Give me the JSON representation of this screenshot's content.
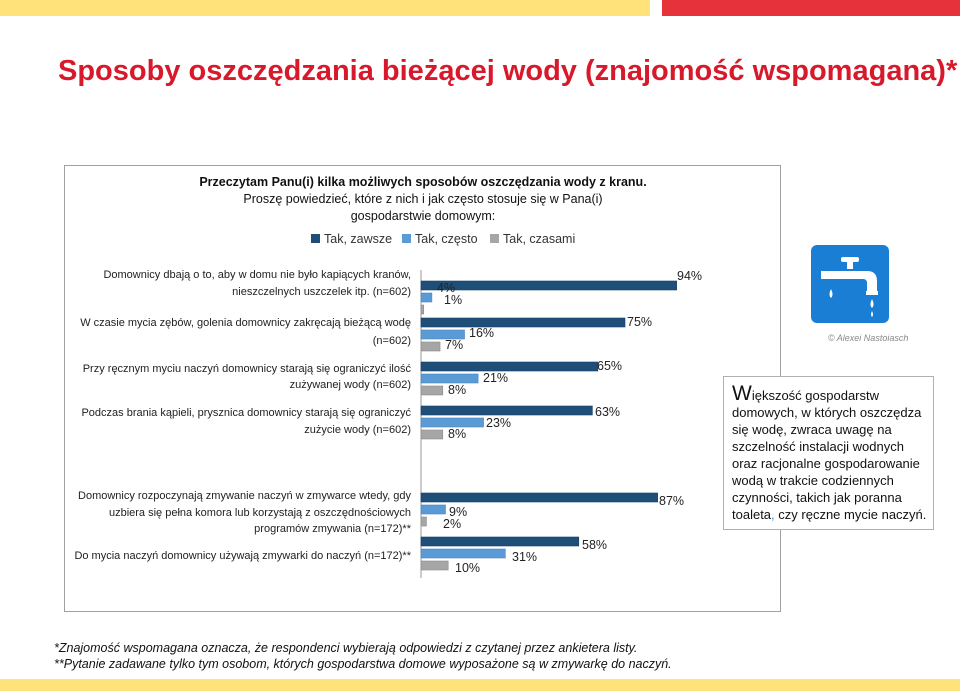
{
  "title": "Sposoby oszczędzania bieżącej wody  (znajomość wspomagana)*",
  "chart_data": {
    "type": "bar",
    "orientation": "horizontal",
    "question": [
      "Przeczytam Panu(i) kilka możliwych sposobów oszczędzania wody z kranu.",
      "Proszę powiedzieć, które z nich i jak często stosuje się w Pana(i)",
      "gospodarstwie domowym:"
    ],
    "legend_position": "top",
    "categories": [
      [
        "Domownicy dbają o to, aby w domu nie było kapiących kranów,",
        "nieszczelnych uszczelek itp. (n=602)"
      ],
      [
        "W czasie mycia zębów, golenia domownicy zakręcają bieżącą wodę",
        "(n=602)"
      ],
      [
        "Przy ręcznym myciu naczyń domownicy starają się ograniczyć ilość",
        "zużywanej wody (n=602)"
      ],
      [
        "Podczas brania kąpieli, prysznica  domownicy starają się ograniczyć",
        "zużycie wody (n=602)"
      ],
      [
        "Domownicy rozpoczynają zmywanie naczyń w zmywarce wtedy, gdy",
        "uzbiera się pełna komora lub korzystają z oszczędnościowych",
        "programów zmywania (n=172)**"
      ],
      [
        "Do mycia naczyń domownicy używają zmywarki do naczyń (n=172)**"
      ]
    ],
    "series": [
      {
        "name": "Tak, zawsze",
        "color": "#1f4e79",
        "values": [
          94,
          75,
          65,
          63,
          87,
          58
        ]
      },
      {
        "name": "Tak, często",
        "color": "#5b9bd5",
        "values": [
          4,
          16,
          21,
          23,
          9,
          31
        ]
      },
      {
        "name": "Tak, czasami",
        "color": "#a6a6a6",
        "values": [
          1,
          7,
          8,
          8,
          2,
          10
        ]
      }
    ],
    "value_labels": [
      [
        "94%",
        "4%",
        "1%"
      ],
      [
        "75%",
        "16%",
        "7%"
      ],
      [
        "65%",
        "21%",
        "8%"
      ],
      [
        "63%",
        "23%",
        "8%"
      ],
      [
        "87%",
        "9%",
        "2%"
      ],
      [
        "58%",
        "31%",
        "10%"
      ]
    ],
    "xlim": [
      0,
      100
    ]
  },
  "info_box": {
    "first_letter": "W",
    "text_part1": "iększość gospodarstw domowych, w których oszczędza się wodę, zwraca uwagę na szczelność instalacji wodnych oraz racjonalne gospodarowanie wodą w trakcie codziennych czynności, takich jak poranna toaleta",
    "comma": ",",
    "text_part2": " czy ręczne mycie naczyń."
  },
  "credit": "© Alexei Nastoiasch",
  "footnotes": [
    "*Znajomość wspomagana oznacza, że respondenci wybierają odpowiedzi z czytanej przez ankietera listy.",
    "**Pytanie zadawane tylko tym osobom, których gospodarstwa domowe wyposażone są w zmywarkę do naczyń."
  ],
  "icon": "water-tap-icon"
}
